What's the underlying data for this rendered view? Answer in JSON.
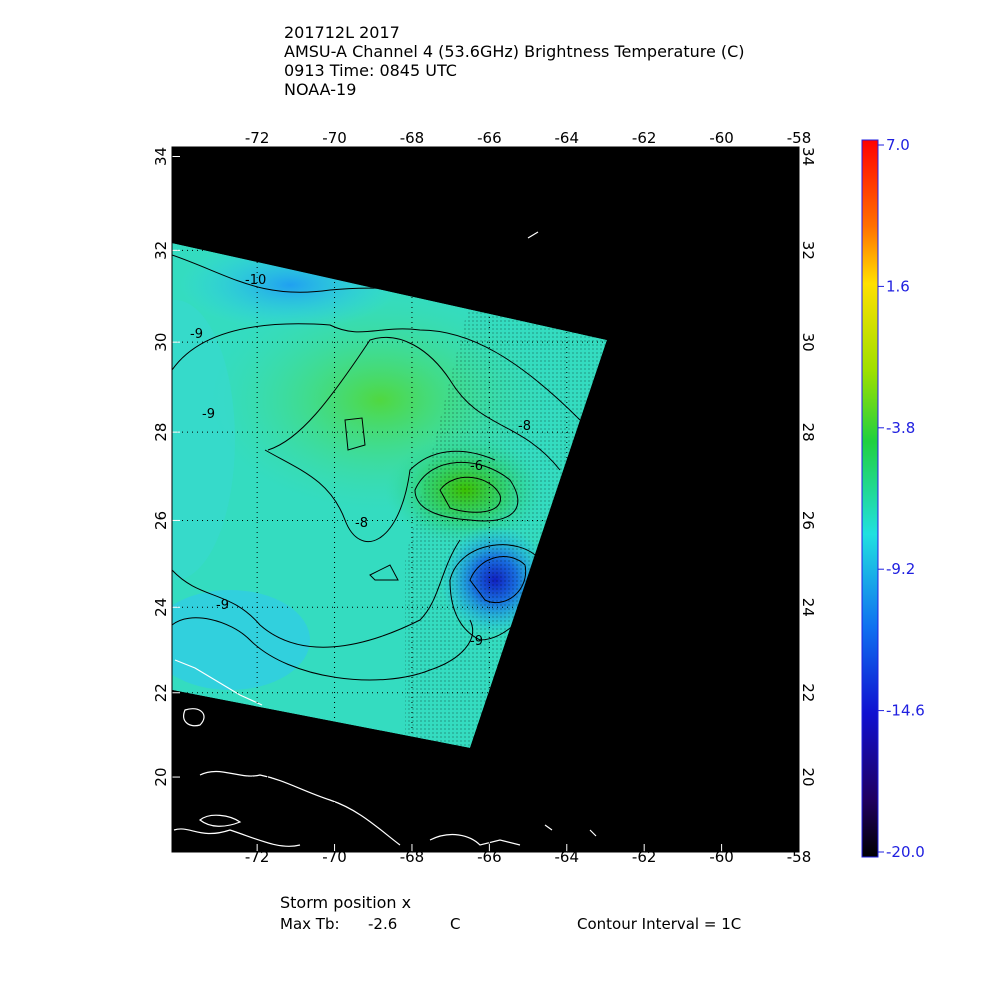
{
  "header": {
    "lines": [
      "201712L 2017",
      "AMSU-A Channel 4 (53.6GHz) Brightness Temperature (C)",
      "0913 Time: 0845 UTC",
      "NOAA-19"
    ]
  },
  "map": {
    "xlim": [
      -74.2,
      -58
    ],
    "ylim": [
      18.2,
      34.2
    ],
    "xticks": [
      -72,
      -70,
      -68,
      -66,
      -64,
      -62,
      -60,
      -58
    ],
    "yticks": [
      20,
      22,
      24,
      26,
      28,
      30,
      32,
      34
    ],
    "grid": true,
    "contour_labels": [
      -10,
      -9,
      -9,
      -8,
      -6,
      -8,
      -9,
      -9
    ]
  },
  "colorbar": {
    "lim": [
      -20,
      7
    ],
    "ticks": [
      {
        "value": 7,
        "label": "7.0"
      },
      1.6,
      -3.8,
      -9.2,
      -14.6,
      {
        "value": -20,
        "label": "-20.0"
      }
    ]
  },
  "footer": {
    "storm": "Storm position x",
    "max_label": "Max Tb:",
    "max_value": -2.6,
    "max_unit": "C",
    "interval": "Contour Interval = 1C"
  }
}
